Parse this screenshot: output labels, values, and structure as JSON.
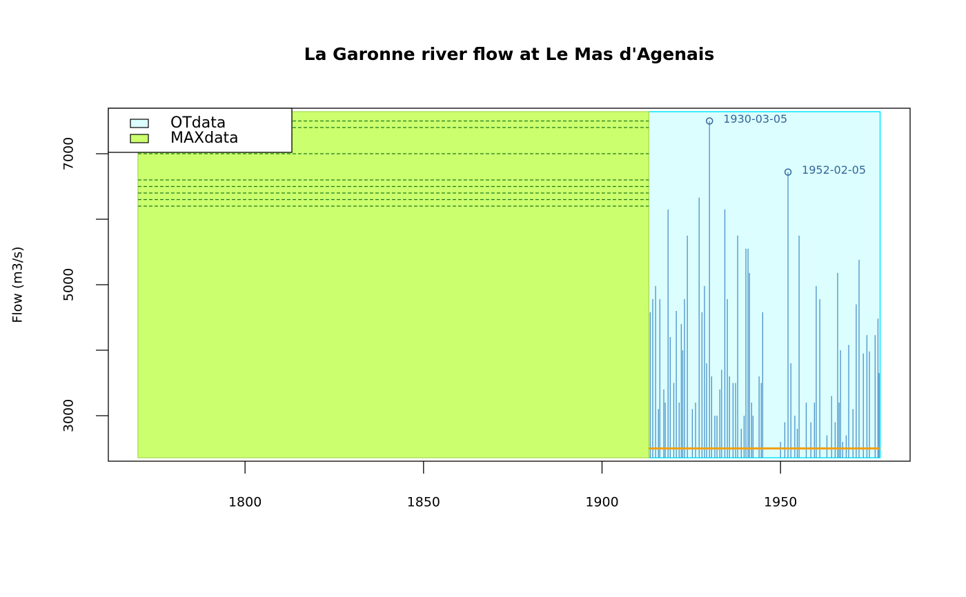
{
  "chart_data": {
    "type": "blocks",
    "title": "La Garonne river flow at Le Mas d'Agenais",
    "ylabel": "Flow (m3/s)",
    "xlim": [
      1761.7,
      1986.3
    ],
    "ylim": [
      2305,
      7695
    ],
    "xticks": [
      1800,
      1850,
      1900,
      1950
    ],
    "yticks": [
      3000,
      5000,
      7000
    ],
    "yticks_unlabeled": [
      4000,
      6000
    ],
    "legend": "top-left",
    "blocks": [
      {
        "name": "OTdata",
        "start": 1913.1,
        "end": 1977.9,
        "color": "#dcfefe",
        "border": "#00e5ff",
        "threshold": 2500,
        "threshold_color": "#f0a010"
      },
      {
        "name": "MAXdata",
        "start": 1770,
        "end": 1913.1,
        "color": "#ccff6e",
        "border": "#b0e060",
        "line_color": "#1a7a1a",
        "values": [
          7500,
          7400,
          7000,
          6600,
          6500,
          6400,
          6300,
          6200
        ]
      }
    ],
    "ot_events": {
      "color": "#4a90c8",
      "x": [
        1913.5,
        1914.2,
        1915.0,
        1915.8,
        1916.2,
        1917.3,
        1917.7,
        1918.5,
        1919.1,
        1920.1,
        1920.8,
        1921.6,
        1922.2,
        1922.6,
        1923.1,
        1923.9,
        1925.3,
        1926.2,
        1927.2,
        1928.0,
        1928.7,
        1929.3,
        1930.1,
        1930.7,
        1931.6,
        1932.2,
        1933.0,
        1933.5,
        1934.4,
        1935.1,
        1935.7,
        1936.7,
        1937.4,
        1938.0,
        1939.0,
        1939.8,
        1940.3,
        1940.9,
        1941.3,
        1941.9,
        1942.3,
        1944.0,
        1944.6,
        1945.0,
        1950.0,
        1951.2,
        1952.1,
        1952.9,
        1954.0,
        1954.7,
        1955.2,
        1957.2,
        1958.5,
        1959.5,
        1960.0,
        1961.0,
        1963.0,
        1964.3,
        1965.3,
        1966.0,
        1966.4,
        1966.8,
        1967.4,
        1968.4,
        1969.1,
        1970.3,
        1971.2,
        1972.0,
        1973.2,
        1974.2,
        1974.9,
        1976.5,
        1977.3,
        1977.6
      ],
      "values": [
        4580,
        4780,
        4980,
        3100,
        4780,
        3400,
        3200,
        6150,
        4200,
        3500,
        4600,
        3200,
        4400,
        4000,
        4780,
        5750,
        3100,
        3200,
        6330,
        4580,
        4980,
        3800,
        7500,
        3600,
        3000,
        3000,
        3400,
        3700,
        6150,
        4780,
        3600,
        3500,
        3500,
        5750,
        2800,
        3000,
        5550,
        5550,
        5180,
        3200,
        3000,
        3600,
        3500,
        4580,
        2600,
        2900,
        6720,
        3800,
        3000,
        2800,
        5750,
        3200,
        2900,
        3200,
        4980,
        4780,
        2700,
        3300,
        2900,
        5180,
        3200,
        4000,
        2600,
        2700,
        4080,
        3100,
        4700,
        5380,
        3950,
        4230,
        3980,
        4230,
        4480,
        3650
      ]
    },
    "annotations": [
      {
        "text": "1930-03-05",
        "x": 1930.1,
        "y": 7500,
        "color": "#336699"
      },
      {
        "text": "1952-02-05",
        "x": 1952.1,
        "y": 6720,
        "color": "#336699"
      }
    ]
  }
}
